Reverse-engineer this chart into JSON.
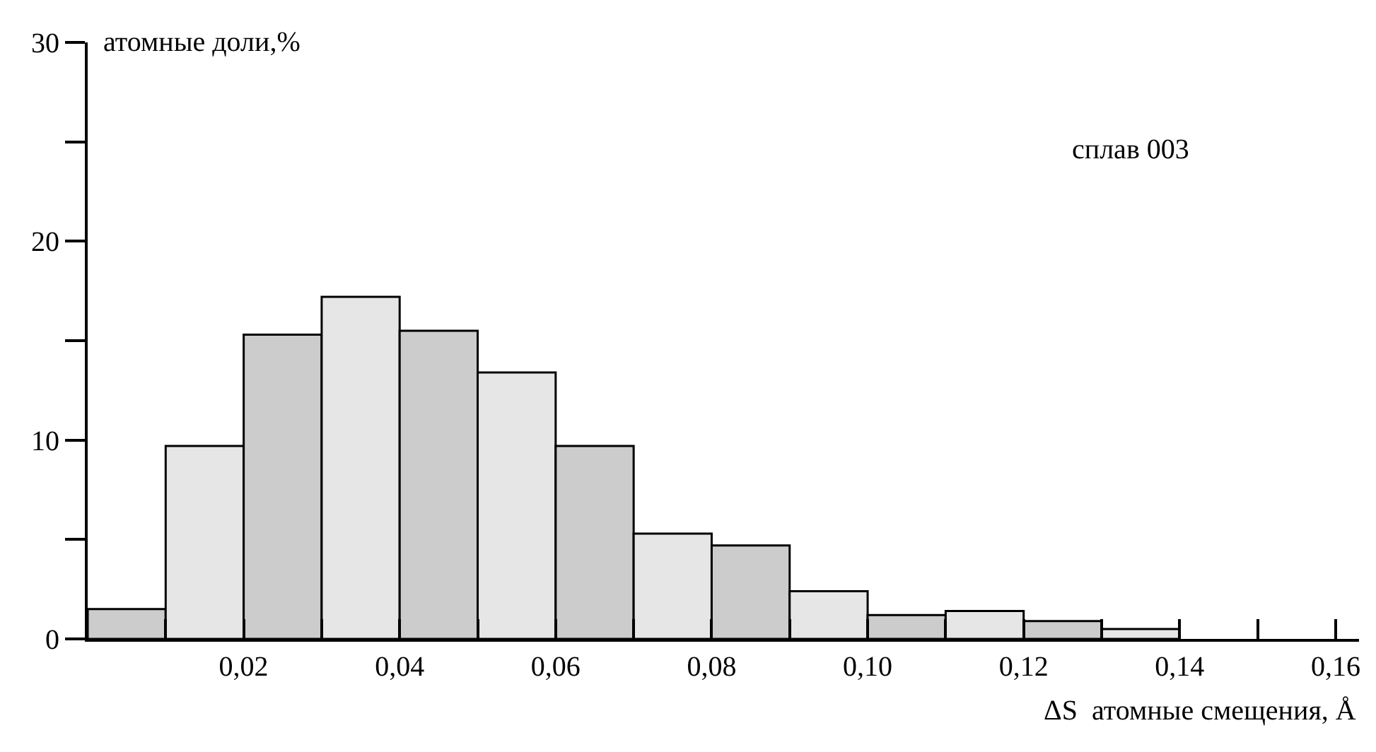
{
  "chart_data": {
    "type": "histogram",
    "ylabel": "атомные доли,%",
    "xlabel": "ΔS  атомные смещения, Å",
    "annotations": [
      "сплав 003"
    ],
    "bins": [
      0,
      0.01,
      0.02,
      0.03,
      0.04,
      0.05,
      0.06,
      0.07,
      0.08,
      0.09,
      0.1,
      0.11,
      0.12,
      0.13,
      0.14
    ],
    "values": [
      1.5,
      9.7,
      15.3,
      17.2,
      15.5,
      13.4,
      9.7,
      5.3,
      4.7,
      2.4,
      1.2,
      1.4,
      0.9,
      0.5
    ],
    "colors": [
      "#cccccc",
      "#e6e6e6",
      "#cccccc",
      "#e6e6e6",
      "#cccccc",
      "#e6e6e6",
      "#cccccc",
      "#e6e6e6",
      "#cccccc",
      "#e6e6e6",
      "#cccccc",
      "#e6e6e6",
      "#cccccc",
      "#e6e6e6"
    ],
    "xlim": [
      0,
      0.163
    ],
    "xticks": [
      {
        "value": 0.01,
        "label": null
      },
      {
        "value": 0.02,
        "label": "0,02"
      },
      {
        "value": 0.03,
        "label": null
      },
      {
        "value": 0.04,
        "label": "0,04"
      },
      {
        "value": 0.05,
        "label": null
      },
      {
        "value": 0.06,
        "label": "0,06"
      },
      {
        "value": 0.07,
        "label": null
      },
      {
        "value": 0.08,
        "label": "0,08"
      },
      {
        "value": 0.09,
        "label": null
      },
      {
        "value": 0.1,
        "label": "0,10"
      },
      {
        "value": 0.11,
        "label": null
      },
      {
        "value": 0.12,
        "label": "0,12"
      },
      {
        "value": 0.13,
        "label": null
      },
      {
        "value": 0.14,
        "label": "0,14"
      },
      {
        "value": 0.15,
        "label": null
      },
      {
        "value": 0.16,
        "label": "0,16"
      }
    ],
    "ylim": [
      0,
      30
    ],
    "yticks": [
      0,
      {
        "value": 5,
        "label": null
      },
      10,
      {
        "value": 15,
        "label": null
      },
      20,
      {
        "value": 25,
        "label": null
      },
      30
    ],
    "grid": false
  }
}
